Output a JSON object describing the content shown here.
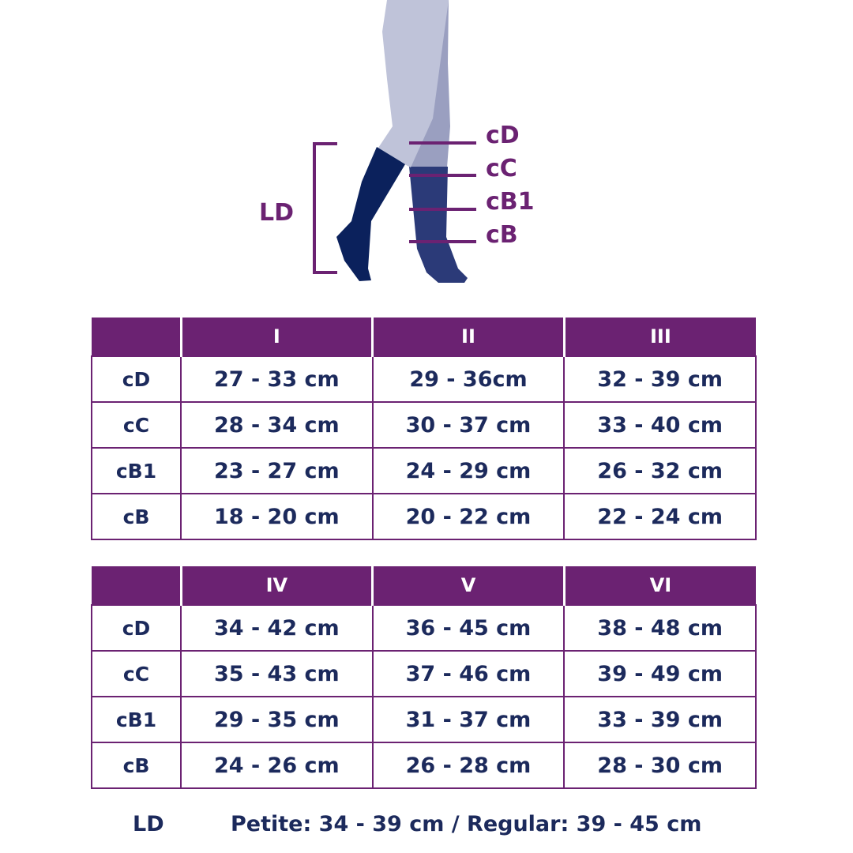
{
  "colors": {
    "accent": "#6b2272",
    "text": "#1c2a5c",
    "stocking_front": "#0b215c",
    "stocking_back": "#2b3a78",
    "leg": "#bfc3d9"
  },
  "illustration": {
    "length_label": "LD",
    "circumference_labels": [
      "cD",
      "cC",
      "cB1",
      "cB"
    ]
  },
  "tables": [
    {
      "headers": [
        "",
        "I",
        "II",
        "III"
      ],
      "rows": [
        {
          "label": "cD",
          "values": [
            "27 - 33 cm",
            "29 - 36cm",
            "32 - 39 cm"
          ]
        },
        {
          "label": "cC",
          "values": [
            "28 - 34 cm",
            "30 - 37 cm",
            "33 - 40 cm"
          ]
        },
        {
          "label": "cB1",
          "values": [
            "23 - 27 cm",
            "24 - 29 cm",
            "26 - 32 cm"
          ]
        },
        {
          "label": "cB",
          "values": [
            "18 - 20 cm",
            "20 - 22 cm",
            "22 - 24 cm"
          ]
        }
      ]
    },
    {
      "headers": [
        "",
        "IV",
        "V",
        "VI"
      ],
      "rows": [
        {
          "label": "cD",
          "values": [
            "34 - 42 cm",
            "36 - 45 cm",
            "38 - 48 cm"
          ]
        },
        {
          "label": "cC",
          "values": [
            "35 - 43 cm",
            "37 - 46 cm",
            "39 - 49 cm"
          ]
        },
        {
          "label": "cB1",
          "values": [
            "29 - 35 cm",
            "31 - 37 cm",
            "33 - 39 cm"
          ]
        },
        {
          "label": "cB",
          "values": [
            "24 - 26 cm",
            "26 - 28 cm",
            "28 - 30 cm"
          ]
        }
      ]
    }
  ],
  "footer": {
    "label": "LD",
    "value": "Petite: 34 - 39 cm / Regular: 39 - 45 cm"
  }
}
